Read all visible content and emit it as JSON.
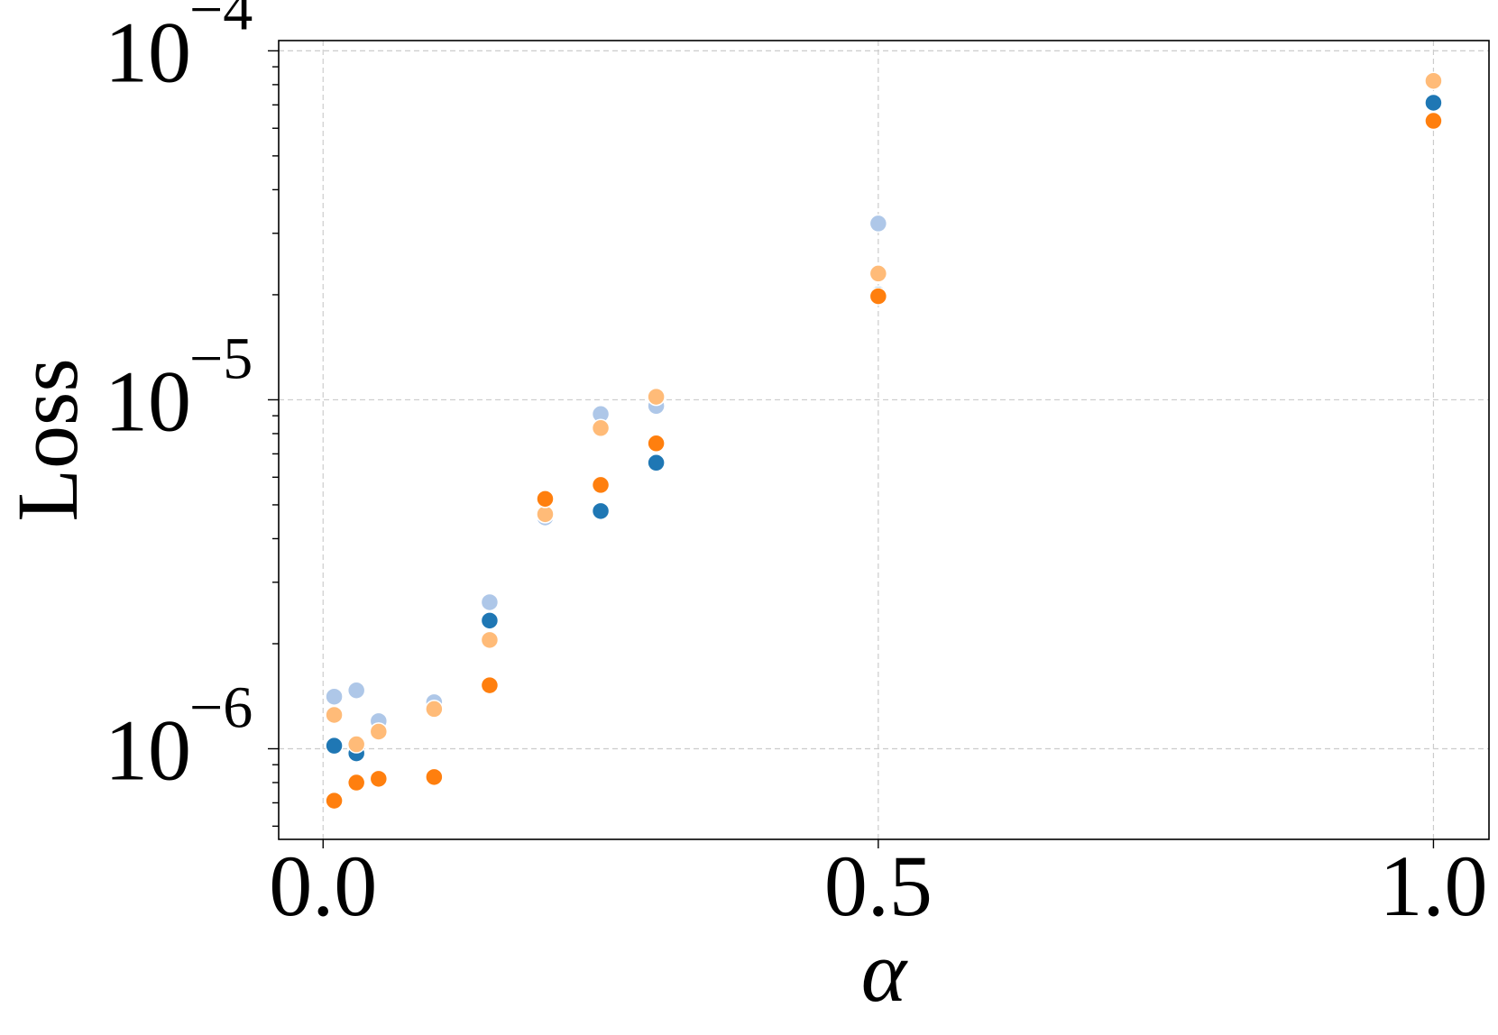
{
  "chart_data": {
    "type": "scatter",
    "title": "",
    "xlabel": "α",
    "ylabel": "Loss",
    "xlim": [
      -0.04,
      1.05
    ],
    "ylim": [
      5.5e-07,
      0.000107
    ],
    "yscale": "log",
    "grid": true,
    "x_ticks": [
      {
        "value": 0.0,
        "label": "0.0"
      },
      {
        "value": 0.5,
        "label": "0.5"
      },
      {
        "value": 1.0,
        "label": "1.0"
      }
    ],
    "y_ticks": [
      {
        "value": 1e-06,
        "base": "10",
        "exponent": "−6"
      },
      {
        "value": 1e-05,
        "base": "10",
        "exponent": "−5"
      },
      {
        "value": 0.0001,
        "base": "10",
        "exponent": "−4"
      }
    ],
    "series": [
      {
        "color": "#aec7e8",
        "points": [
          [
            0.01,
            1.41e-06
          ],
          [
            0.03,
            1.47e-06
          ],
          [
            0.05,
            1.2e-06
          ],
          [
            0.1,
            1.36e-06
          ],
          [
            0.15,
            2.63e-06
          ],
          [
            0.2,
            4.6e-06
          ],
          [
            0.25,
            9.1e-06
          ],
          [
            0.3,
            9.6e-06
          ],
          [
            0.5,
            3.2e-05
          ],
          [
            1.0,
            8.2e-05
          ]
        ]
      },
      {
        "color": "#1f77b4",
        "points": [
          [
            0.01,
            1.02e-06
          ],
          [
            0.03,
            9.7e-07
          ],
          [
            0.05,
            1.12e-06
          ],
          [
            0.1,
            1.3e-06
          ],
          [
            0.15,
            2.33e-06
          ],
          [
            0.2,
            4.7e-06
          ],
          [
            0.25,
            4.8e-06
          ],
          [
            0.3,
            6.6e-06
          ],
          [
            0.5,
            2e-05
          ],
          [
            1.0,
            7.1e-05
          ]
        ]
      },
      {
        "color": "#ffbb78",
        "points": [
          [
            0.01,
            1.25e-06
          ],
          [
            0.03,
            1.03e-06
          ],
          [
            0.05,
            1.12e-06
          ],
          [
            0.1,
            1.3e-06
          ],
          [
            0.15,
            2.05e-06
          ],
          [
            0.2,
            4.7e-06
          ],
          [
            0.25,
            8.3e-06
          ],
          [
            0.3,
            1.02e-05
          ],
          [
            0.5,
            2.3e-05
          ],
          [
            1.0,
            8.2e-05
          ]
        ]
      },
      {
        "color": "#ff7f0e",
        "points": [
          [
            0.01,
            7.1e-07
          ],
          [
            0.03,
            8e-07
          ],
          [
            0.05,
            8.2e-07
          ],
          [
            0.1,
            8.3e-07
          ],
          [
            0.15,
            1.52e-06
          ],
          [
            0.2,
            5.2e-06
          ],
          [
            0.25,
            5.7e-06
          ],
          [
            0.3,
            7.5e-06
          ],
          [
            0.5,
            1.98e-05
          ],
          [
            1.0,
            6.3e-05
          ]
        ]
      }
    ]
  }
}
